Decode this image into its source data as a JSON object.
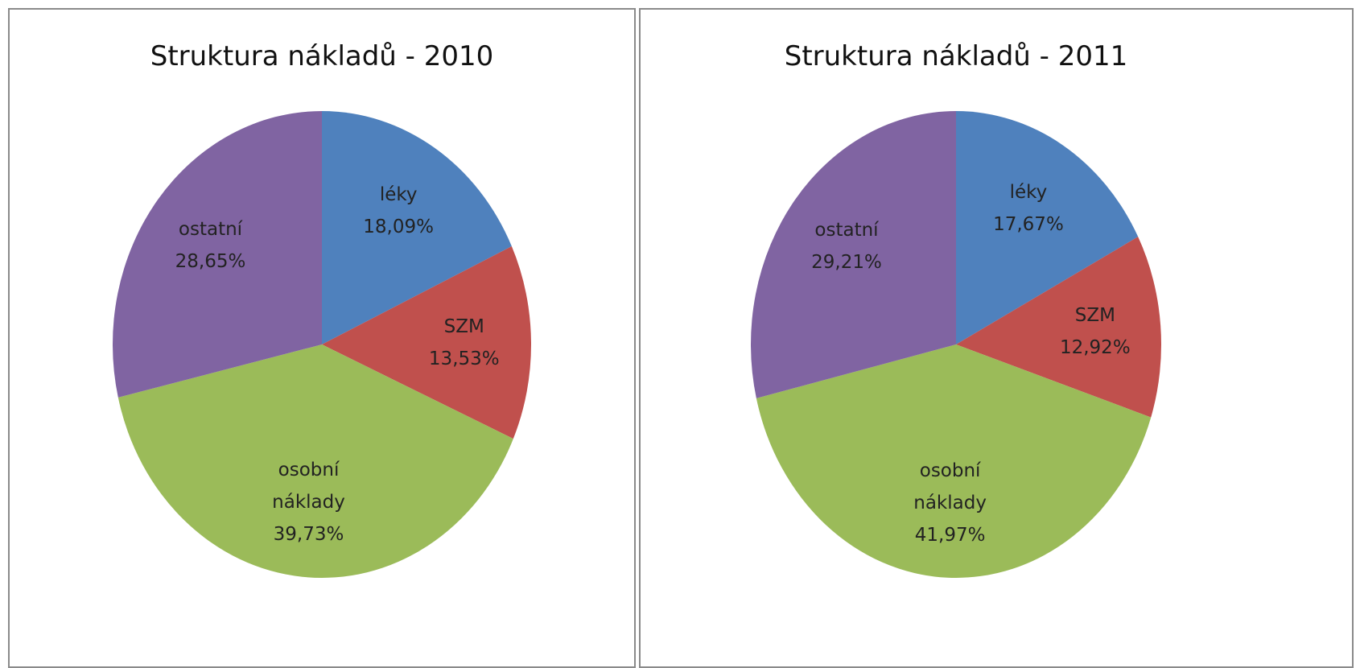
{
  "chart_data": [
    {
      "type": "pie",
      "title": "Struktura nákladů - 2010",
      "categories": [
        "léky",
        "SZM",
        "osobní náklady",
        "ostatní"
      ],
      "values": [
        18.09,
        13.53,
        39.73,
        28.65
      ],
      "value_labels": [
        "18,09%",
        "13,53%",
        "39,73%",
        "28,65%"
      ],
      "colors": [
        "#4f81bd",
        "#c0504d",
        "#9bbb59",
        "#8064a2"
      ]
    },
    {
      "type": "pie",
      "title": "Struktura nákladů - 2011",
      "categories": [
        "léky",
        "SZM",
        "osobní náklady",
        "ostatní"
      ],
      "values": [
        17.67,
        12.92,
        41.97,
        29.21
      ],
      "value_labels": [
        "17,67%",
        "12,92%",
        "41,97%",
        "29,21%"
      ],
      "colors": [
        "#4f81bd",
        "#c0504d",
        "#9bbb59",
        "#8064a2"
      ]
    }
  ]
}
